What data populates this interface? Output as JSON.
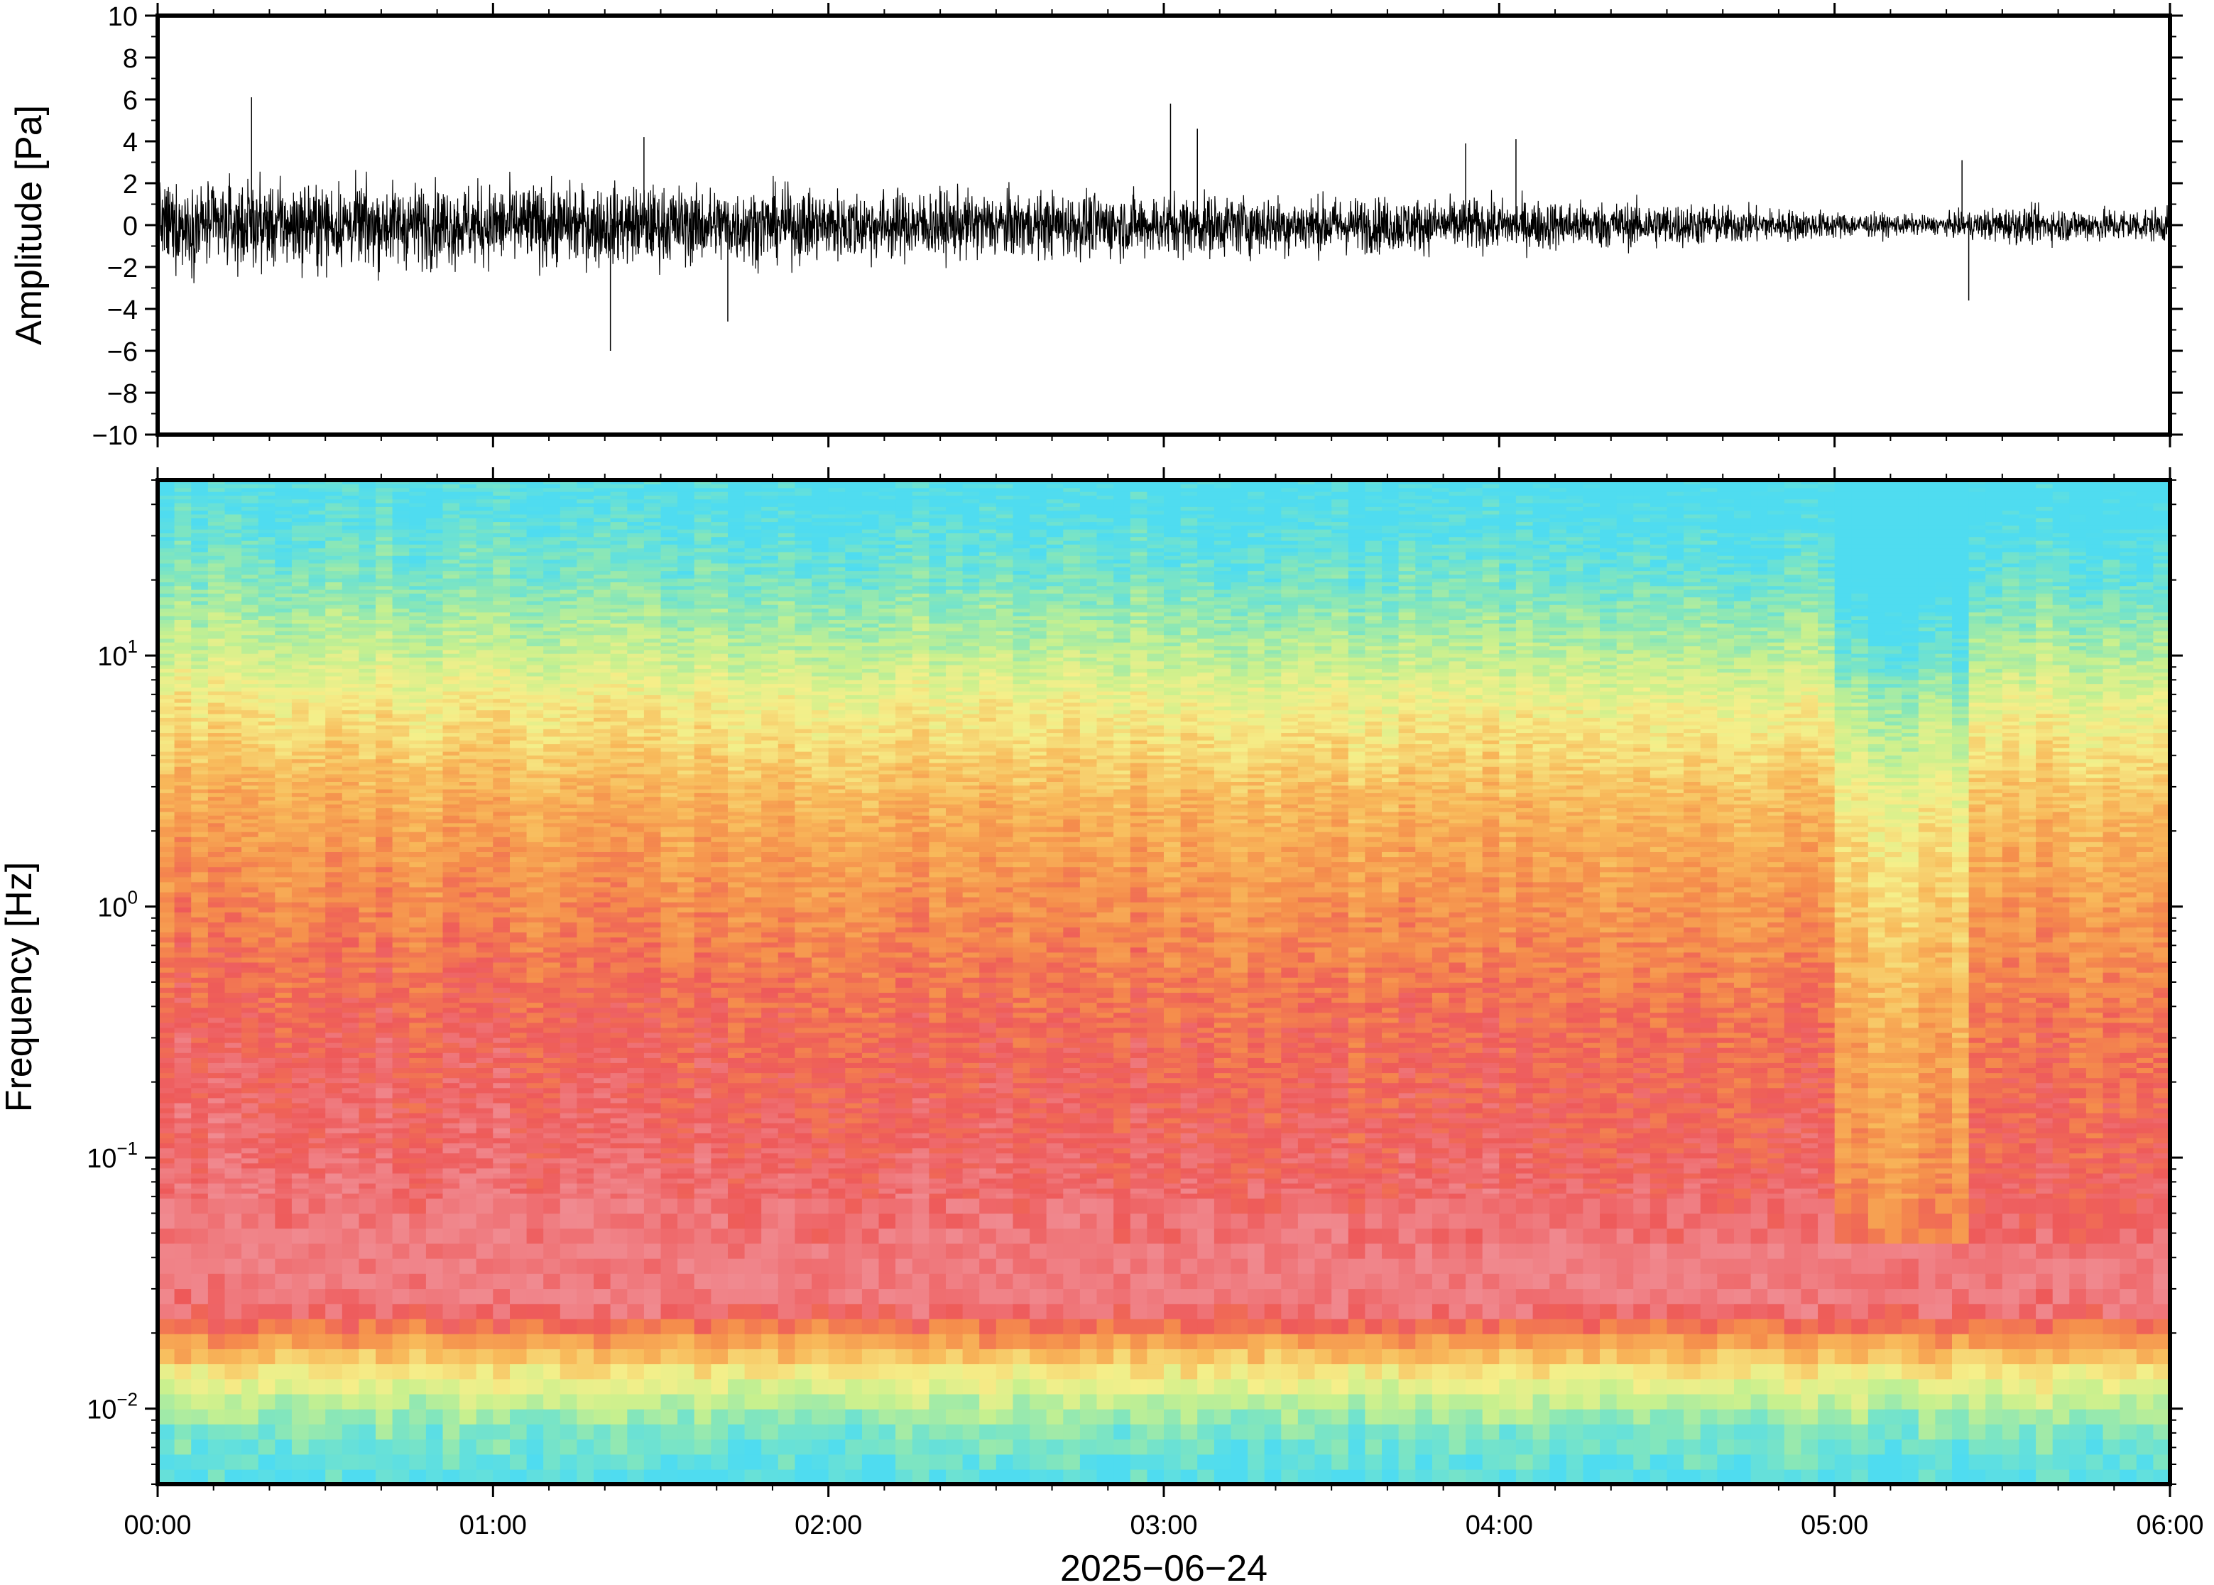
{
  "chart_data": [
    {
      "type": "line",
      "ylabel": "Amplitude [Pa]",
      "xlim": [
        "00:00",
        "06:00"
      ],
      "ylim": [
        -10,
        10
      ],
      "y_ticks": [
        "10",
        "8",
        "6",
        "4",
        "2",
        "0",
        "−2",
        "−4",
        "−6",
        "−8",
        "−10"
      ],
      "series": [
        {
          "envelope": {
            "x_hours": [
              0.0,
              0.5,
              1.0,
              1.5,
              2.0,
              2.5,
              3.0,
              3.5,
              4.0,
              4.5,
              5.0,
              5.3,
              5.5,
              6.0
            ],
            "amplitude_pa": [
              1.4,
              1.4,
              1.35,
              1.3,
              1.2,
              1.1,
              1.05,
              0.95,
              0.85,
              0.75,
              0.45,
              0.3,
              0.6,
              0.55
            ]
          },
          "spikes": [
            {
              "x_hours": 0.28,
              "y": 6.1
            },
            {
              "x_hours": 1.35,
              "y": -6.0
            },
            {
              "x_hours": 3.02,
              "y": 5.8
            },
            {
              "x_hours": 3.1,
              "y": 4.6
            },
            {
              "x_hours": 1.45,
              "y": 4.2
            },
            {
              "x_hours": 4.05,
              "y": 4.1
            },
            {
              "x_hours": 3.9,
              "y": 3.9
            },
            {
              "x_hours": 5.4,
              "y": -3.6
            },
            {
              "x_hours": 5.38,
              "y": 3.1
            },
            {
              "x_hours": 1.7,
              "y": -4.6
            }
          ]
        }
      ]
    },
    {
      "type": "heatmap",
      "ylabel": "Frequency [Hz]",
      "xlabel": "2025−06−24",
      "x_ticks": [
        "00:00",
        "01:00",
        "02:00",
        "03:00",
        "04:00",
        "05:00",
        "06:00"
      ],
      "y_scale": "log",
      "ylim": [
        0.005,
        50
      ],
      "y_ticks": [
        {
          "base": "10",
          "exp": "1",
          "value": 10
        },
        {
          "base": "10",
          "exp": "0",
          "value": 1
        },
        {
          "base": "10",
          "exp": "−1",
          "value": 0.1
        },
        {
          "base": "10",
          "exp": "−2",
          "value": 0.01
        }
      ],
      "colormap": [
        "#4fdcf0",
        "#84e6bb",
        "#c8f08e",
        "#f5ef8a",
        "#f8b95a",
        "#f58e4c",
        "#ee5a5a",
        "#f08a90",
        "#ee5656",
        "#6fc6f4",
        "#2e8cf0",
        "#0a3ecf",
        "#02119a"
      ],
      "colormap_stops": [
        0.0,
        0.1,
        0.2,
        0.3,
        0.42,
        0.52,
        0.62,
        0.72,
        0.8,
        0.9,
        0.95,
        0.98,
        1.0
      ],
      "log_frequency_profile": [
        {
          "log_f": -2.3,
          "level": 0.02
        },
        {
          "log_f": -2.1,
          "level": 0.1
        },
        {
          "log_f": -1.9,
          "level": 0.3
        },
        {
          "log_f": -1.75,
          "level": 0.5
        },
        {
          "log_f": -1.6,
          "level": 0.72
        },
        {
          "log_f": -1.3,
          "level": 0.7
        },
        {
          "log_f": -1.0,
          "level": 0.66
        },
        {
          "log_f": -0.5,
          "level": 0.62
        },
        {
          "log_f": 0.0,
          "level": 0.54
        },
        {
          "log_f": 0.4,
          "level": 0.46
        },
        {
          "log_f": 0.8,
          "level": 0.32
        },
        {
          "log_f": 1.0,
          "level": 0.22
        },
        {
          "log_f": 1.3,
          "level": 0.1
        },
        {
          "log_f": 1.6,
          "level": 0.02
        }
      ],
      "quiet_interval_hours": [
        5.0,
        5.4
      ]
    }
  ]
}
